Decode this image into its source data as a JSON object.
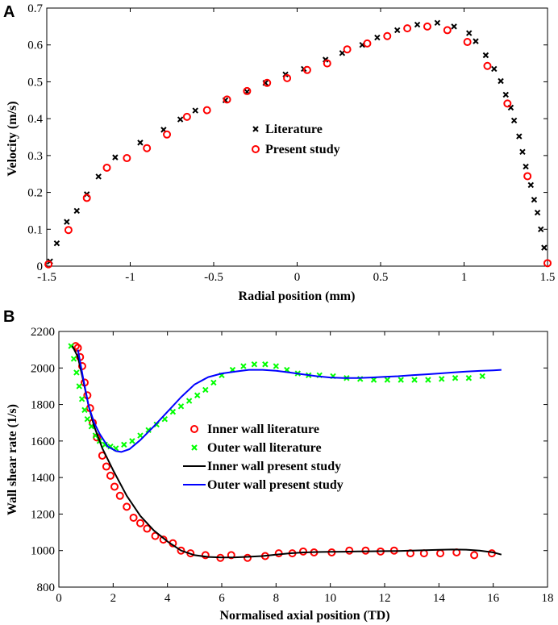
{
  "chart_data": [
    {
      "panel": "A",
      "type": "scatter",
      "title": "",
      "xlabel": "Radial position (mm)",
      "ylabel": "Velocity (m/s)",
      "xlim": [
        -1.5,
        1.5
      ],
      "ylim": [
        0,
        0.7
      ],
      "xticks": [
        "-1.5",
        "-1",
        "-0.5",
        "0",
        "0.5",
        "1",
        "1.5"
      ],
      "yticks": [
        "0",
        "0.1",
        "0.2",
        "0.3",
        "0.4",
        "0.5",
        "0.6",
        "0.7"
      ],
      "legend_position": "center",
      "series": [
        {
          "name": "Literature",
          "marker": "x",
          "color": "#000000",
          "x": [
            -1.48,
            -1.44,
            -1.38,
            -1.32,
            -1.26,
            -1.19,
            -1.09,
            -0.94,
            -0.8,
            -0.7,
            -0.61,
            -0.43,
            -0.3,
            -0.19,
            -0.07,
            0.04,
            0.17,
            0.27,
            0.39,
            0.48,
            0.6,
            0.72,
            0.84,
            0.94,
            1.03,
            1.07,
            1.13,
            1.18,
            1.22,
            1.25,
            1.28,
            1.3,
            1.33,
            1.35,
            1.37,
            1.4,
            1.42,
            1.44,
            1.46,
            1.48
          ],
          "y": [
            0.013,
            0.062,
            0.12,
            0.15,
            0.195,
            0.243,
            0.295,
            0.335,
            0.37,
            0.398,
            0.422,
            0.45,
            0.473,
            0.497,
            0.52,
            0.535,
            0.56,
            0.578,
            0.6,
            0.62,
            0.64,
            0.655,
            0.66,
            0.65,
            0.632,
            0.61,
            0.572,
            0.535,
            0.502,
            0.465,
            0.43,
            0.395,
            0.352,
            0.31,
            0.27,
            0.22,
            0.18,
            0.145,
            0.1,
            0.05
          ]
        },
        {
          "name": "Present study",
          "marker": "o",
          "color": "#ff0000",
          "x": [
            -1.49,
            -1.37,
            -1.26,
            -1.14,
            -1.02,
            -0.9,
            -0.78,
            -0.66,
            -0.54,
            -0.42,
            -0.3,
            -0.18,
            -0.06,
            0.06,
            0.18,
            0.3,
            0.42,
            0.54,
            0.66,
            0.78,
            0.9,
            1.02,
            1.14,
            1.26,
            1.38,
            1.5
          ],
          "y": [
            0.005,
            0.098,
            0.185,
            0.267,
            0.293,
            0.32,
            0.357,
            0.405,
            0.423,
            0.452,
            0.475,
            0.497,
            0.51,
            0.532,
            0.55,
            0.588,
            0.604,
            0.624,
            0.645,
            0.65,
            0.64,
            0.608,
            0.543,
            0.441,
            0.244,
            0.008
          ]
        }
      ]
    },
    {
      "panel": "B",
      "type": "line",
      "title": "",
      "xlabel": "Normalised axial position (TD)",
      "ylabel": "Wall shear rate (1/s)",
      "xlim": [
        0,
        18
      ],
      "ylim": [
        800,
        2200
      ],
      "xticks": [
        "0",
        "2",
        "4",
        "6",
        "8",
        "10",
        "12",
        "14",
        "16",
        "18"
      ],
      "yticks": [
        "800",
        "1000",
        "1200",
        "1400",
        "1600",
        "1800",
        "2000",
        "2200"
      ],
      "legend_position": "center-left",
      "series": [
        {
          "name": "Inner wall literature",
          "marker": "o",
          "color": "#ff0000",
          "x": [
            0.62,
            0.7,
            0.78,
            0.86,
            0.95,
            1.05,
            1.15,
            1.25,
            1.4,
            1.6,
            1.75,
            1.9,
            2.05,
            2.25,
            2.5,
            2.75,
            3.0,
            3.25,
            3.55,
            3.85,
            4.2,
            4.5,
            4.85,
            5.4,
            5.95,
            6.35,
            6.95,
            7.6,
            8.1,
            8.6,
            9.0,
            9.4,
            10.05,
            10.7,
            11.3,
            11.85,
            12.35,
            12.95,
            13.45,
            14.05,
            14.65,
            15.3,
            15.95
          ],
          "y": [
            2120,
            2110,
            2060,
            2010,
            1920,
            1850,
            1780,
            1700,
            1620,
            1520,
            1460,
            1410,
            1350,
            1300,
            1240,
            1180,
            1150,
            1120,
            1080,
            1060,
            1040,
            1000,
            985,
            975,
            960,
            975,
            960,
            970,
            985,
            985,
            995,
            990,
            990,
            1000,
            1000,
            995,
            1000,
            985,
            985,
            985,
            990,
            975,
            985
          ]
        },
        {
          "name": "Outer wall literature",
          "marker": "x",
          "color": "#00ff00",
          "x": [
            0.45,
            0.55,
            0.65,
            0.75,
            0.85,
            0.95,
            1.05,
            1.2,
            1.35,
            1.5,
            1.7,
            1.9,
            2.1,
            2.4,
            2.7,
            3.0,
            3.3,
            3.6,
            3.9,
            4.2,
            4.5,
            4.8,
            5.1,
            5.4,
            5.7,
            6.0,
            6.4,
            6.8,
            7.2,
            7.6,
            8.0,
            8.4,
            8.8,
            9.2,
            9.6,
            10.1,
            10.6,
            11.1,
            11.6,
            12.1,
            12.6,
            13.1,
            13.6,
            14.1,
            14.6,
            15.1,
            15.6
          ],
          "y": [
            2120,
            2050,
            1975,
            1900,
            1830,
            1770,
            1720,
            1680,
            1630,
            1600,
            1580,
            1570,
            1560,
            1580,
            1600,
            1630,
            1660,
            1690,
            1720,
            1760,
            1790,
            1820,
            1850,
            1880,
            1920,
            1960,
            1990,
            2010,
            2020,
            2020,
            2010,
            1990,
            1970,
            1960,
            1960,
            1955,
            1945,
            1940,
            1935,
            1935,
            1935,
            1935,
            1935,
            1940,
            1945,
            1945,
            1955
          ]
        },
        {
          "name": "Inner wall present study",
          "marker": "line",
          "color": "#000000",
          "x": [
            0.5,
            0.7,
            0.9,
            1.1,
            1.3,
            1.6,
            2.0,
            2.5,
            3.0,
            3.5,
            4.0,
            4.5,
            5.0,
            5.5,
            6.0,
            6.5,
            7.0,
            7.5,
            8.0,
            8.5,
            9.0,
            9.5,
            10.0,
            10.5,
            11.0,
            11.5,
            12.0,
            12.5,
            13.0,
            13.5,
            14.0,
            14.5,
            15.0,
            15.5,
            16.0,
            16.3
          ],
          "y": [
            2120,
            2060,
            1930,
            1790,
            1680,
            1560,
            1440,
            1300,
            1190,
            1110,
            1050,
            1000,
            975,
            965,
            962,
            963,
            966,
            970,
            978,
            985,
            990,
            992,
            993,
            994,
            995,
            996,
            997,
            998,
            1000,
            1002,
            1004,
            1006,
            1005,
            1000,
            990,
            978
          ]
        },
        {
          "name": "Outer wall present study",
          "marker": "line",
          "color": "#0000ff",
          "x": [
            0.7,
            0.9,
            1.1,
            1.3,
            1.5,
            1.8,
            2.1,
            2.3,
            2.6,
            3.0,
            3.5,
            4.0,
            4.5,
            5.0,
            5.5,
            6.0,
            6.5,
            7.0,
            7.5,
            8.0,
            8.5,
            9.0,
            9.5,
            10.0,
            10.5,
            11.0,
            11.5,
            12.0,
            12.5,
            13.0,
            13.5,
            14.0,
            14.5,
            15.0,
            15.5,
            16.0,
            16.3
          ],
          "y": [
            2100,
            1940,
            1790,
            1700,
            1640,
            1570,
            1545,
            1540,
            1555,
            1605,
            1680,
            1760,
            1840,
            1910,
            1950,
            1970,
            1980,
            1990,
            1990,
            1985,
            1975,
            1965,
            1955,
            1948,
            1945,
            1945,
            1948,
            1952,
            1955,
            1960,
            1965,
            1970,
            1975,
            1980,
            1984,
            1987,
            1990
          ]
        }
      ]
    }
  ]
}
